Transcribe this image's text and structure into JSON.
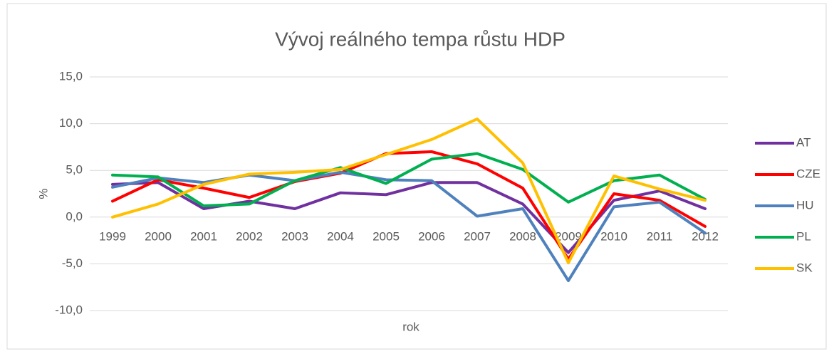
{
  "chart_data": {
    "type": "line",
    "title": "Vývoj reálného tempa růstu HDP",
    "x_label": "rok",
    "y_label": "%",
    "categories": [
      "1999",
      "2000",
      "2001",
      "2002",
      "2003",
      "2004",
      "2005",
      "2006",
      "2007",
      "2008",
      "2009",
      "2010",
      "2011",
      "2012"
    ],
    "series": [
      {
        "name": "AT",
        "color": "#7030a0",
        "values": [
          3.5,
          3.7,
          0.9,
          1.7,
          0.9,
          2.6,
          2.4,
          3.7,
          3.7,
          1.4,
          -3.8,
          1.8,
          2.8,
          0.9
        ]
      },
      {
        "name": "CZE",
        "color": "#ff0000",
        "values": [
          1.7,
          4.0,
          3.1,
          2.1,
          3.8,
          4.7,
          6.8,
          7.0,
          5.7,
          3.1,
          -4.5,
          2.5,
          1.8,
          -1.0
        ]
      },
      {
        "name": "HU",
        "color": "#4f81bd",
        "values": [
          3.2,
          4.2,
          3.7,
          4.5,
          3.9,
          4.8,
          4.0,
          3.9,
          0.1,
          0.9,
          -6.8,
          1.1,
          1.6,
          -1.7
        ]
      },
      {
        "name": "PL",
        "color": "#00b050",
        "values": [
          4.5,
          4.3,
          1.2,
          1.4,
          3.9,
          5.3,
          3.6,
          6.2,
          6.8,
          5.1,
          1.6,
          3.9,
          4.5,
          1.9
        ]
      },
      {
        "name": "SK",
        "color": "#ffc000",
        "values": [
          0.0,
          1.4,
          3.5,
          4.6,
          4.8,
          5.1,
          6.7,
          8.3,
          10.5,
          5.8,
          -4.9,
          4.4,
          3.0,
          1.8
        ]
      }
    ],
    "ylim": [
      -10,
      15
    ],
    "yticks": [
      {
        "value": -10,
        "label": "-10,0"
      },
      {
        "value": -5,
        "label": "-5,0"
      },
      {
        "value": 0,
        "label": "0,0"
      },
      {
        "value": 5,
        "label": "5,0"
      },
      {
        "value": 10,
        "label": "10,0"
      },
      {
        "value": 15,
        "label": "15,0"
      }
    ],
    "grid": true,
    "legend": "right"
  }
}
